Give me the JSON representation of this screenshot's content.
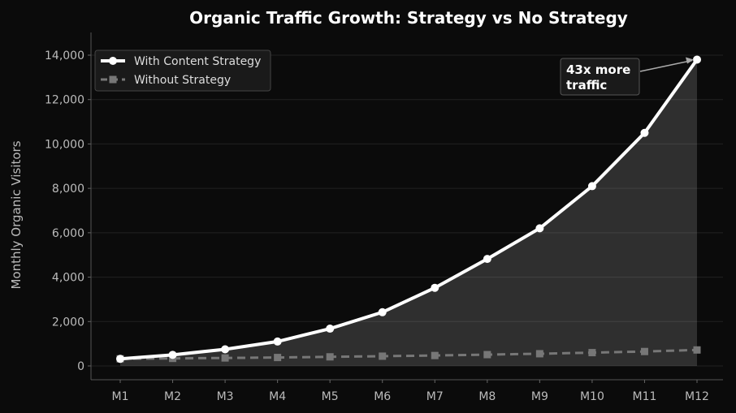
{
  "chart_data": {
    "type": "line",
    "title": "Organic Traffic Growth: Strategy vs No Strategy",
    "xlabel": "",
    "ylabel": "Monthly Organic Visitors",
    "categories": [
      "M1",
      "M2",
      "M3",
      "M4",
      "M5",
      "M6",
      "M7",
      "M8",
      "M9",
      "M10",
      "M11",
      "M12"
    ],
    "ylim": [
      -700,
      14500
    ],
    "yticks": [
      0,
      2000,
      4000,
      6000,
      8000,
      10000,
      12000,
      14000
    ],
    "ytick_labels": [
      "0",
      "2,000",
      "4,000",
      "6,000",
      "8,000",
      "10,000",
      "12,000",
      "14,000"
    ],
    "grid": true,
    "legend_position": "top-left",
    "series": [
      {
        "name": "With Content Strategy",
        "color": "#ffffff",
        "style": "solid",
        "marker": "circle",
        "fill_area": true,
        "values": [
          320,
          500,
          750,
          1100,
          1680,
          2420,
          3520,
          4820,
          6200,
          8100,
          10500,
          13800
        ]
      },
      {
        "name": "Without Strategy",
        "color": "#777777",
        "style": "dashed",
        "marker": "square",
        "values": [
          320,
          340,
          360,
          380,
          410,
          440,
          470,
          510,
          550,
          600,
          650,
          720
        ]
      }
    ],
    "annotation": {
      "text_line1": "43x more",
      "text_line2": "traffic",
      "target_category": "M12",
      "target_value": 13800
    }
  }
}
